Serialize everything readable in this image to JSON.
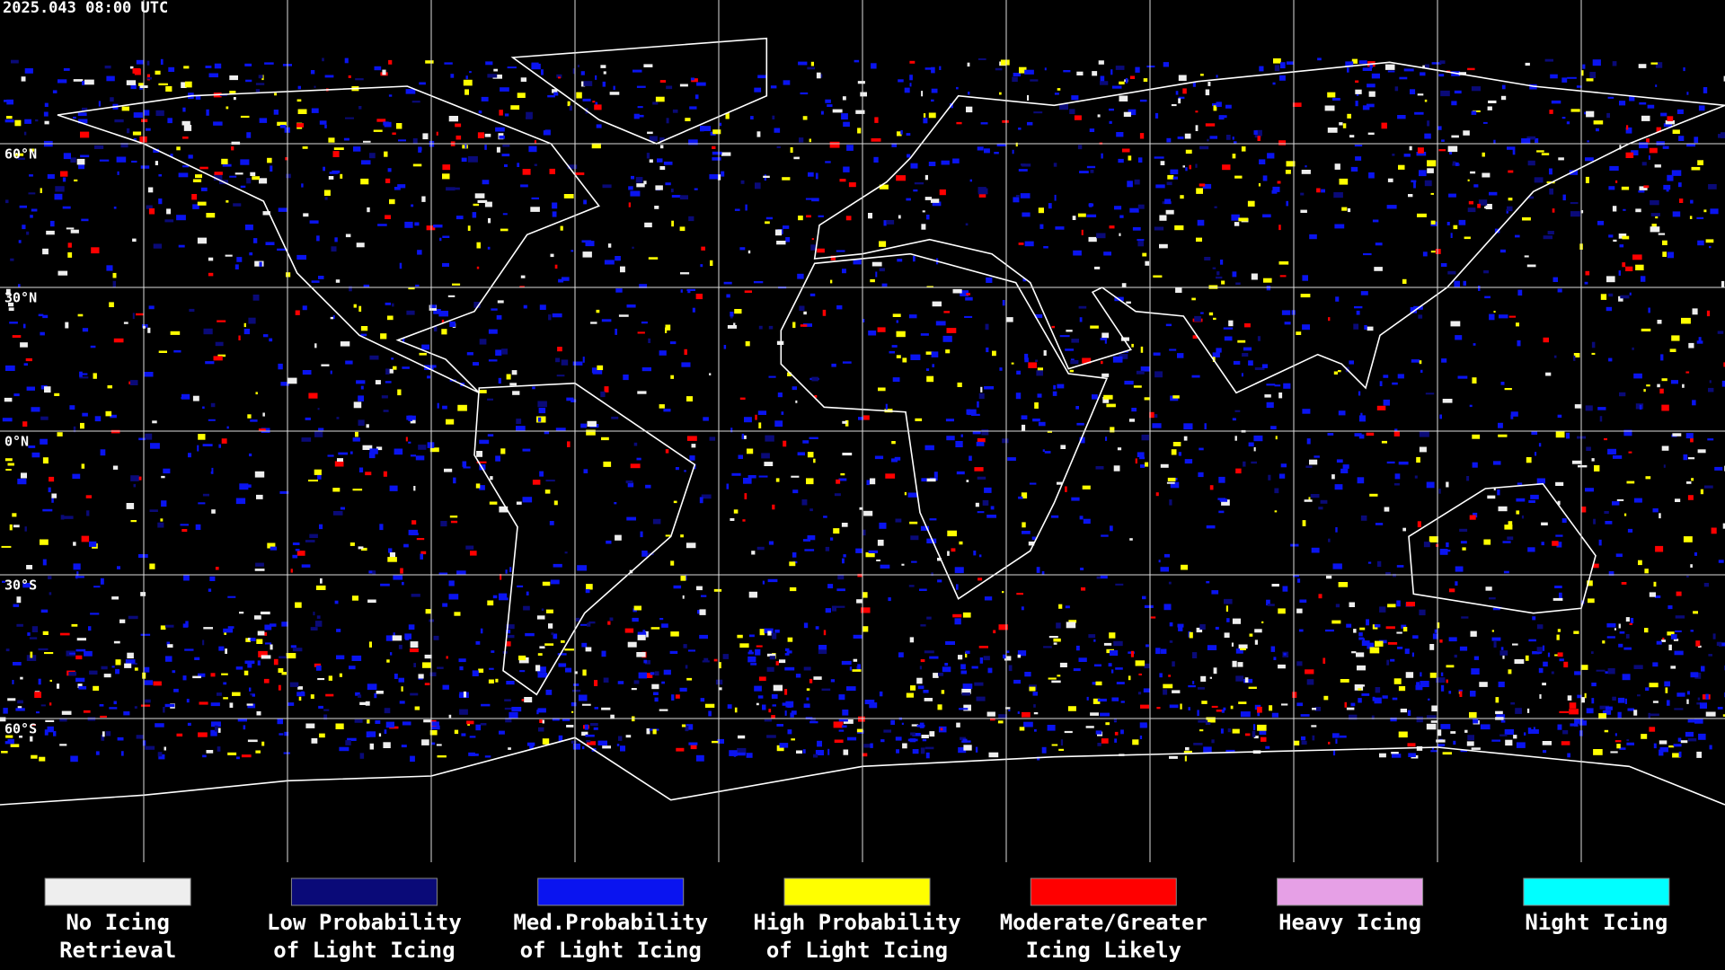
{
  "header": {
    "timestamp": "2025.043 08:00 UTC"
  },
  "map": {
    "latitude_labels": [
      "60°N",
      "30°N",
      "0°N",
      "30°S",
      "60°S"
    ]
  },
  "legend": [
    {
      "color": "#eeeeee",
      "lines": [
        "No Icing",
        "Retrieval"
      ]
    },
    {
      "color": "#0a0a78",
      "lines": [
        "Low Probability",
        "of Light Icing"
      ]
    },
    {
      "color": "#0a14f0",
      "lines": [
        "Med.Probability",
        "of Light Icing"
      ]
    },
    {
      "color": "#ffff00",
      "lines": [
        "High Probability",
        "of Light Icing"
      ]
    },
    {
      "color": "#ff0000",
      "lines": [
        "Moderate/Greater",
        "Icing Likely"
      ]
    },
    {
      "color": "#e6a0e6",
      "lines": [
        "Heavy Icing"
      ]
    },
    {
      "color": "#00ffff",
      "lines": [
        "Night Icing"
      ]
    }
  ]
}
